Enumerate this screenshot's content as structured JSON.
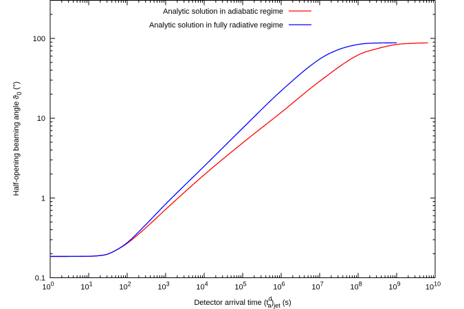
{
  "chart_data": {
    "type": "line",
    "title": "",
    "xlabel_main": "Detector arrival time (t",
    "xlabel_sup": "d",
    "xlabel_sub1": "a",
    "xlabel_mid": ")",
    "xlabel_sub2": "jet",
    "xlabel_tail": " (s)",
    "ylabel_main": "Half-opening beaming angle ϑ",
    "ylabel_sub": "0",
    "ylabel_tail": " (°)",
    "xscale": "log",
    "yscale": "log",
    "xlim": [
      1,
      10000000000
    ],
    "ylim": [
      0.1,
      300
    ],
    "x_ticks": [
      {
        "base": "10",
        "exp": "0"
      },
      {
        "base": "10",
        "exp": "1"
      },
      {
        "base": "10",
        "exp": "2"
      },
      {
        "base": "10",
        "exp": "3"
      },
      {
        "base": "10",
        "exp": "4"
      },
      {
        "base": "10",
        "exp": "5"
      },
      {
        "base": "10",
        "exp": "6"
      },
      {
        "base": "10",
        "exp": "7"
      },
      {
        "base": "10",
        "exp": "8"
      },
      {
        "base": "10",
        "exp": "9"
      },
      {
        "base": "10",
        "exp": "10"
      }
    ],
    "y_ticks": [
      "0.1",
      "1",
      "10",
      "100"
    ],
    "legend_position": "top-right",
    "grid": false,
    "series": [
      {
        "name": "Analytic solution in adiabatic regime",
        "color": "#ff0000",
        "x": [
          1,
          10,
          20,
          30,
          50,
          100,
          300,
          1000,
          10000,
          100000,
          1000000,
          10000000,
          100000000,
          300000000,
          1000000000,
          3000000000,
          6500000000
        ],
        "y": [
          0.185,
          0.186,
          0.19,
          0.197,
          0.22,
          0.27,
          0.42,
          0.72,
          1.95,
          4.9,
          11.8,
          29,
          62,
          74,
          84,
          87,
          88
        ]
      },
      {
        "name": "Analytic solution in fully radiative regime",
        "color": "#0000ff",
        "x": [
          1,
          10,
          20,
          30,
          50,
          100,
          300,
          1000,
          10000,
          100000,
          1000000,
          10000000,
          30000000,
          100000000,
          300000000,
          1000000000
        ],
        "y": [
          0.185,
          0.186,
          0.19,
          0.197,
          0.22,
          0.275,
          0.46,
          0.84,
          2.5,
          7.5,
          22,
          55,
          72,
          84,
          87.5,
          88
        ]
      }
    ]
  }
}
